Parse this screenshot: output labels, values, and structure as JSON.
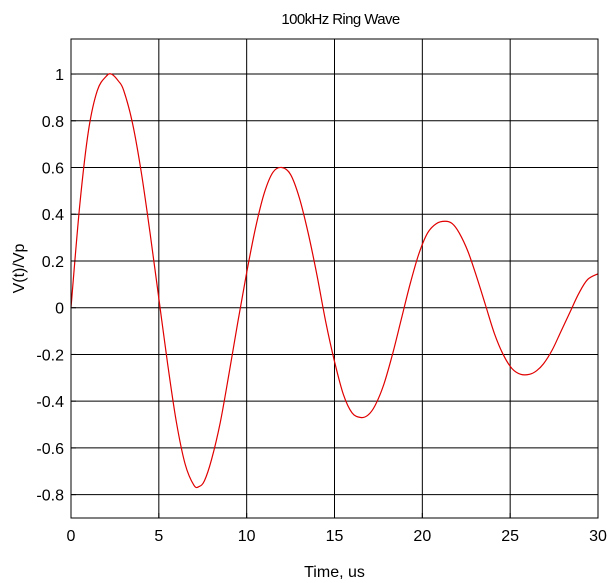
{
  "chart_data": {
    "type": "line",
    "title": "100kHz Ring Wave",
    "xlabel": "Time, us",
    "ylabel": "V(t)/Vp",
    "xlim": [
      0,
      30
    ],
    "ylim": [
      -0.9,
      1.15
    ],
    "grid": true,
    "x_ticks": [
      0,
      5,
      10,
      15,
      20,
      25,
      30
    ],
    "x_tick_labels": [
      "0",
      "5",
      "10",
      "15",
      "20",
      "25",
      "30"
    ],
    "y_ticks": [
      1,
      0.8,
      0.6,
      0.4,
      0.2,
      0,
      -0.2,
      -0.4,
      -0.6,
      -0.8
    ],
    "y_tick_labels": [
      "1",
      "0.8",
      "0.6",
      "0.4",
      "0.2",
      "0",
      "-0.2",
      "-0.4",
      "-0.6",
      "-0.8"
    ],
    "series": [
      {
        "color": "#e00000",
        "x": [
          0,
          0.5,
          1.0,
          1.5,
          2.0,
          2.3,
          2.7,
          3.0,
          3.5,
          4.0,
          4.5,
          5.0,
          5.5,
          6.0,
          6.5,
          7.0,
          7.3,
          7.6,
          8.0,
          8.5,
          9.0,
          9.5,
          10.0,
          10.5,
          11.0,
          11.5,
          12.0,
          12.5,
          13.0,
          13.5,
          14.0,
          14.5,
          15.0,
          15.5,
          16.0,
          16.5,
          16.9,
          17.3,
          17.8,
          18.3,
          18.8,
          19.3,
          19.8,
          20.3,
          20.8,
          21.3,
          21.7,
          22.1,
          22.6,
          23.1,
          23.6,
          24.1,
          24.6,
          25.1,
          25.6,
          26.1,
          26.5,
          26.9,
          27.4,
          27.9,
          28.4,
          28.9,
          29.4,
          30.0
        ],
        "y": [
          0,
          0.44,
          0.76,
          0.93,
          0.99,
          1.0,
          0.97,
          0.93,
          0.79,
          0.58,
          0.32,
          0.04,
          -0.24,
          -0.49,
          -0.67,
          -0.76,
          -0.765,
          -0.74,
          -0.65,
          -0.49,
          -0.28,
          -0.06,
          0.15,
          0.34,
          0.49,
          0.58,
          0.6,
          0.57,
          0.47,
          0.32,
          0.14,
          -0.06,
          -0.23,
          -0.37,
          -0.45,
          -0.47,
          -0.46,
          -0.42,
          -0.33,
          -0.2,
          -0.05,
          0.1,
          0.23,
          0.32,
          0.36,
          0.37,
          0.36,
          0.32,
          0.24,
          0.13,
          0.01,
          -0.11,
          -0.2,
          -0.26,
          -0.285,
          -0.285,
          -0.27,
          -0.24,
          -0.18,
          -0.1,
          -0.02,
          0.06,
          0.12,
          0.145
        ]
      }
    ]
  }
}
